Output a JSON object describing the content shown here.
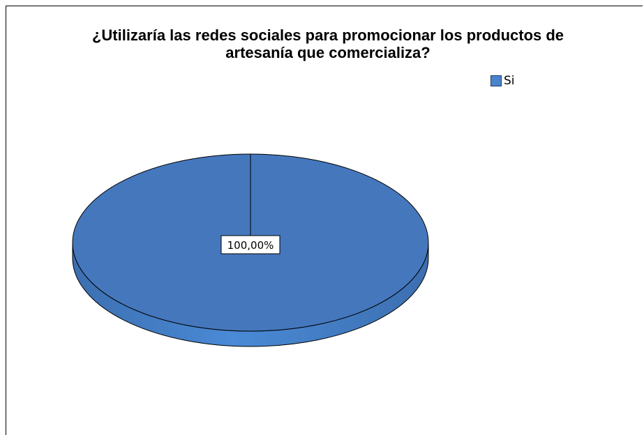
{
  "chart_data": {
    "type": "pie",
    "title": "¿Utilizaría las redes sociales para promocionar los productos de artesanía que comercializa?",
    "title_lines": [
      "¿Utilizaría las redes sociales para promocionar los productos de",
      "artesanía que comercializa?"
    ],
    "categories": [
      "Si"
    ],
    "values": [
      100.0
    ],
    "data_labels": [
      "100,00%"
    ],
    "legend": [
      {
        "label": "Si",
        "color": "#4a84cc"
      }
    ],
    "legend_position": "top-right",
    "style": "3d",
    "colors": {
      "slice_top": "#4577bd",
      "slice_side": "#4a84cc",
      "slice_side_dark": "#3c6fb0",
      "outline": "#000000"
    }
  }
}
